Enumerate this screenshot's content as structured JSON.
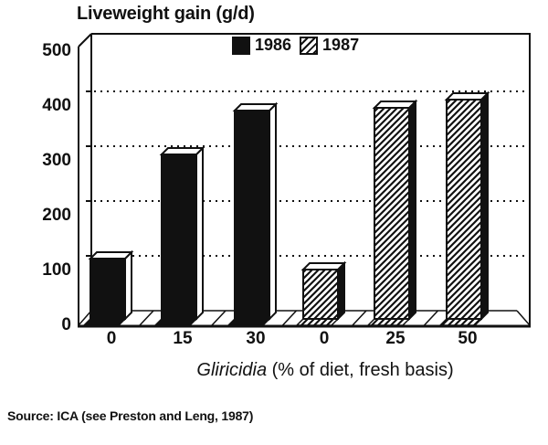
{
  "title": "Liveweight gain (g/d)",
  "source": "Source: ICA (see Preston and Leng, 1987)",
  "colors": {
    "ink": "#111111",
    "paper": "#ffffff"
  },
  "chart_data": {
    "type": "bar",
    "title": "Liveweight gain (g/d)",
    "ylabel": "Liveweight gain (g/d)",
    "xlabel": "Gliricidia (% of diet, fresh basis)",
    "xlabel_italic_part": "Gliricidia",
    "xlabel_regular_part": " (% of diet, fresh basis)",
    "ylim": [
      0,
      500
    ],
    "y_ticks": [
      0,
      100,
      200,
      300,
      400,
      500
    ],
    "grid": "dotted-horizontal",
    "legend_position": "top-center-inside",
    "style": "3d-perspective-bars",
    "categories": [
      "0",
      "15",
      "30",
      "0",
      "25",
      "50"
    ],
    "series": [
      {
        "name": "1986",
        "pattern": "solid-black",
        "values": [
          110,
          300,
          380
        ]
      },
      {
        "name": "1987",
        "pattern": "diagonal-hatch",
        "values": [
          90,
          385,
          400
        ]
      }
    ],
    "bars": [
      {
        "category": "0",
        "series": "1986",
        "value": 110
      },
      {
        "category": "15",
        "series": "1986",
        "value": 300
      },
      {
        "category": "30",
        "series": "1986",
        "value": 380
      },
      {
        "category": "0",
        "series": "1987",
        "value": 90
      },
      {
        "category": "25",
        "series": "1987",
        "value": 385
      },
      {
        "category": "50",
        "series": "1987",
        "value": 400
      }
    ]
  }
}
